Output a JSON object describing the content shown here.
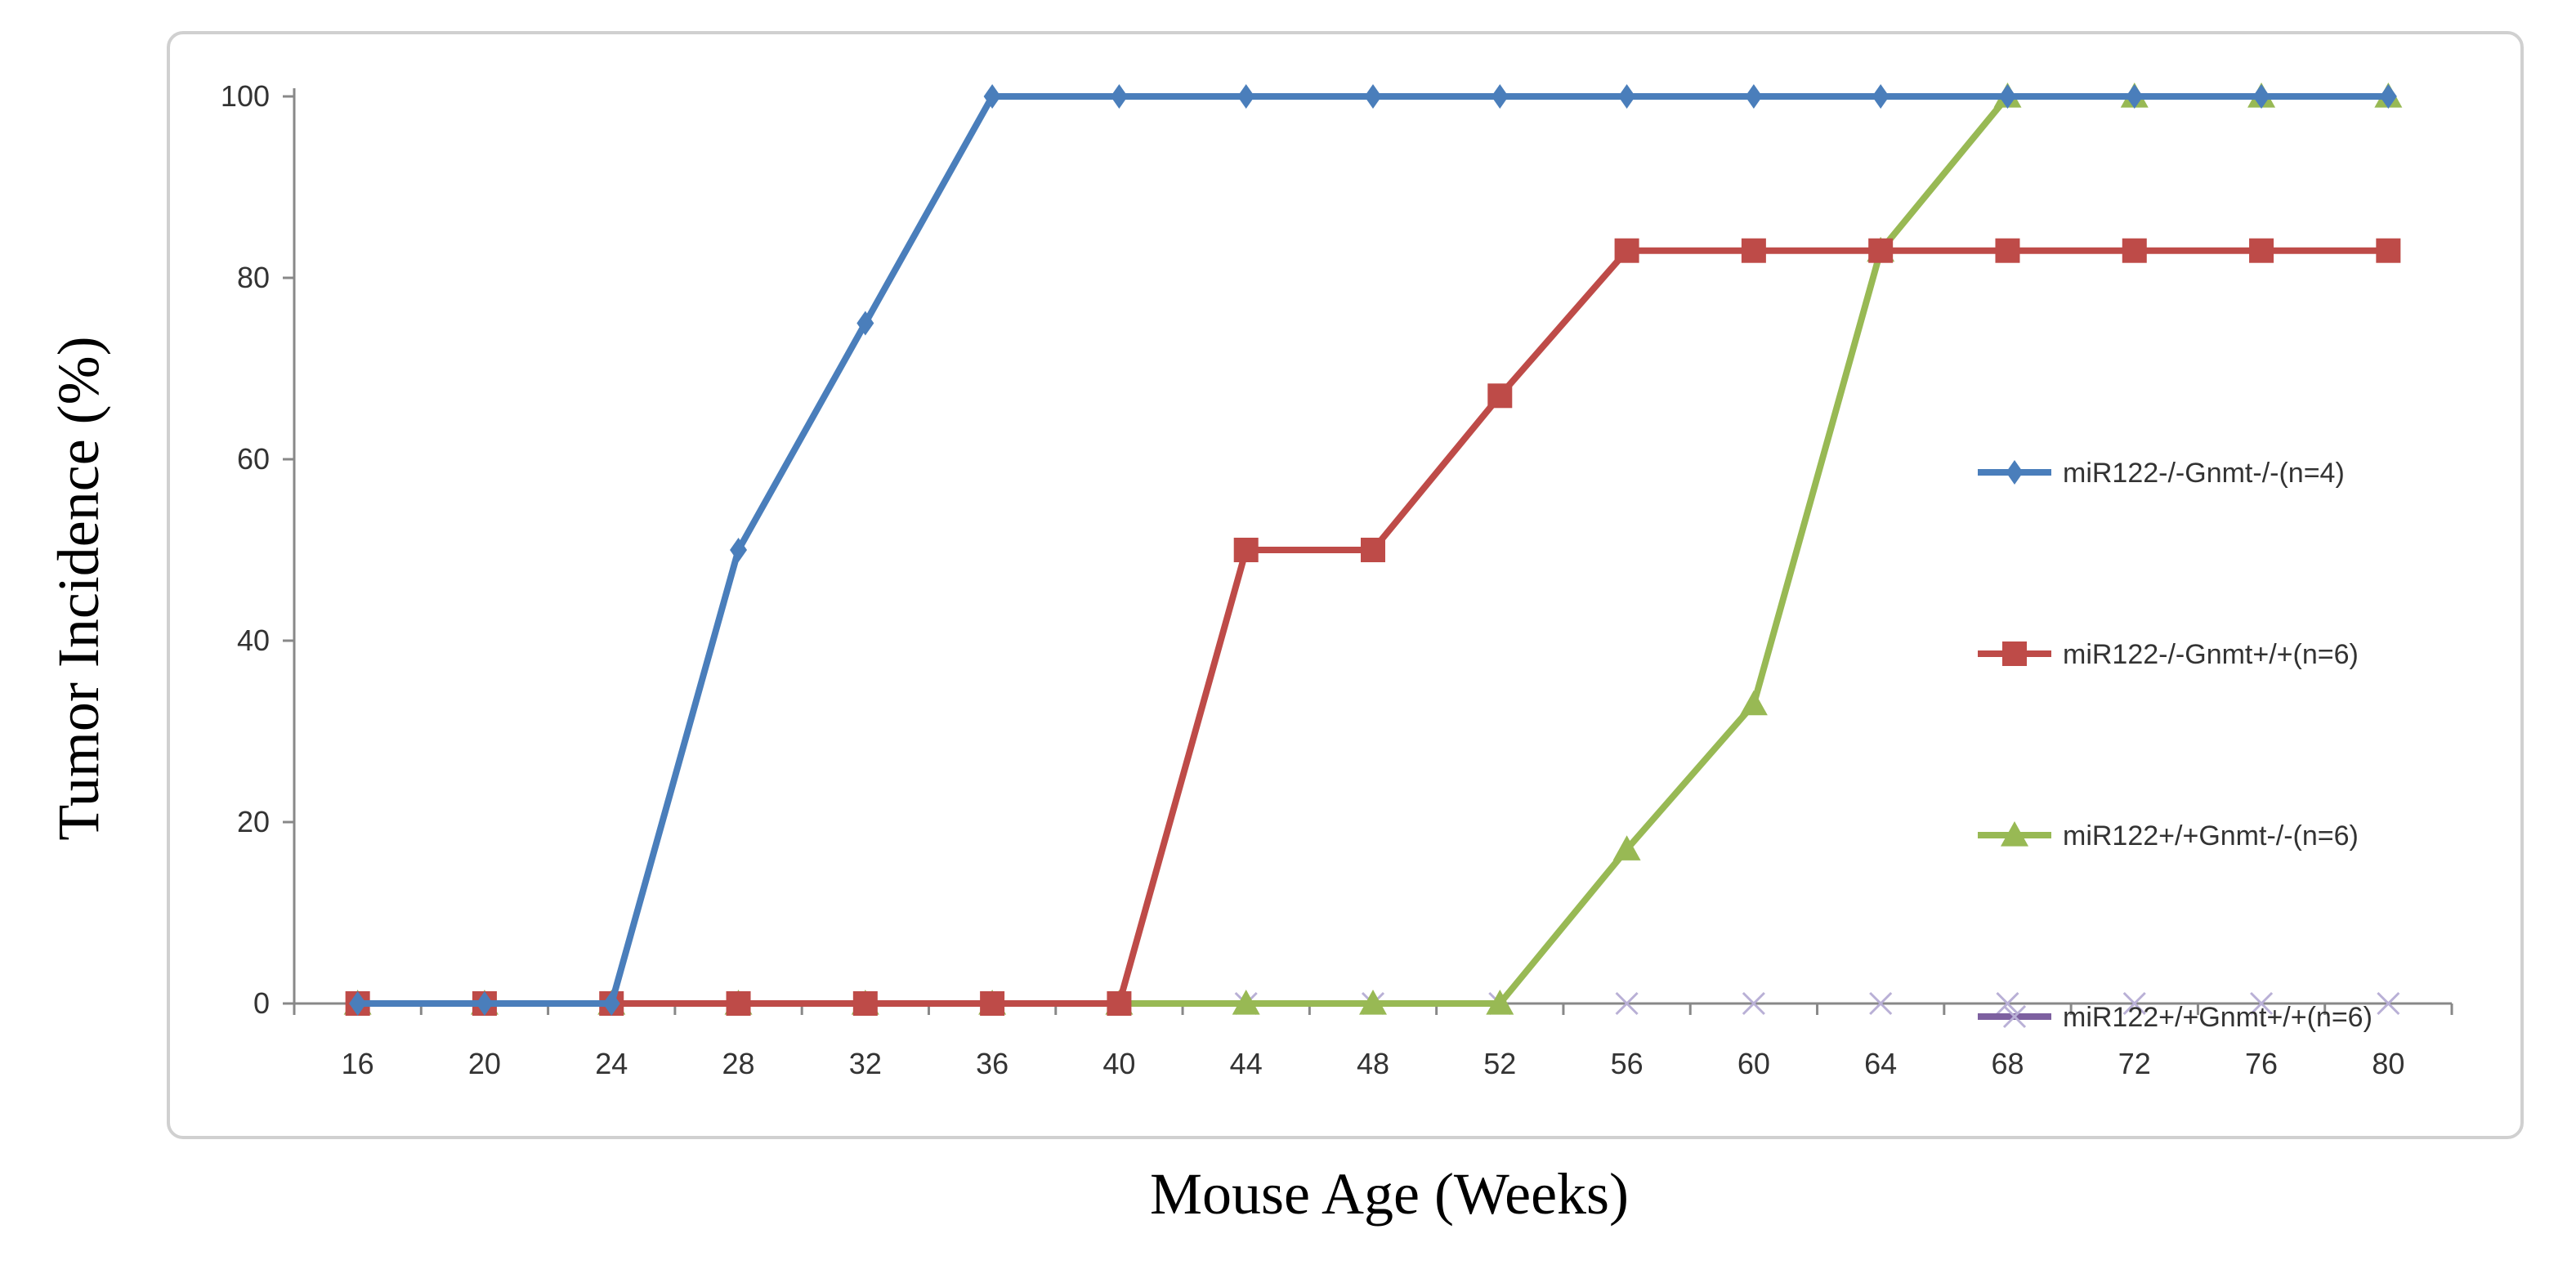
{
  "chart_data": {
    "type": "line",
    "xlabel": "Mouse Age (Weeks)",
    "ylabel": "Tumor Incidence (%)",
    "categories": [
      "16",
      "20",
      "24",
      "28",
      "32",
      "36",
      "40",
      "44",
      "48",
      "52",
      "56",
      "60",
      "64",
      "68",
      "72",
      "76",
      "80"
    ],
    "x": [
      16,
      20,
      24,
      28,
      32,
      36,
      40,
      44,
      48,
      52,
      56,
      60,
      64,
      68,
      72,
      76,
      80
    ],
    "ylim": [
      0,
      100
    ],
    "yticks": [
      0,
      20,
      40,
      60,
      80,
      100
    ],
    "grid": false,
    "legend_position": "right",
    "series": [
      {
        "name": "miR122-/-Gnmt-/-(n=4)",
        "color": "#4a7ebb",
        "marker": "diamond",
        "values": [
          0,
          0,
          0,
          50,
          75,
          100,
          100,
          100,
          100,
          100,
          100,
          100,
          100,
          100,
          100,
          100,
          100
        ]
      },
      {
        "name": "miR122-/-Gnmt+/+(n=6)",
        "color": "#be4b48",
        "marker": "square",
        "values": [
          0,
          0,
          0,
          0,
          0,
          0,
          0,
          50,
          50,
          67,
          83,
          83,
          83,
          83,
          83,
          83,
          83
        ]
      },
      {
        "name": "miR122+/+Gnmt-/-(n=6)",
        "color": "#98b954",
        "marker": "triangle",
        "values": [
          0,
          0,
          0,
          0,
          0,
          0,
          0,
          0,
          0,
          0,
          17,
          33,
          83,
          100,
          100,
          100,
          100
        ]
      },
      {
        "name": "miR122+/+Gnmt+/+(n=6)",
        "color": "#7d60a0",
        "marker": "x",
        "values": [
          0,
          0,
          0,
          0,
          0,
          0,
          0,
          0,
          0,
          0,
          0,
          0,
          0,
          0,
          0,
          0,
          0
        ]
      }
    ]
  }
}
